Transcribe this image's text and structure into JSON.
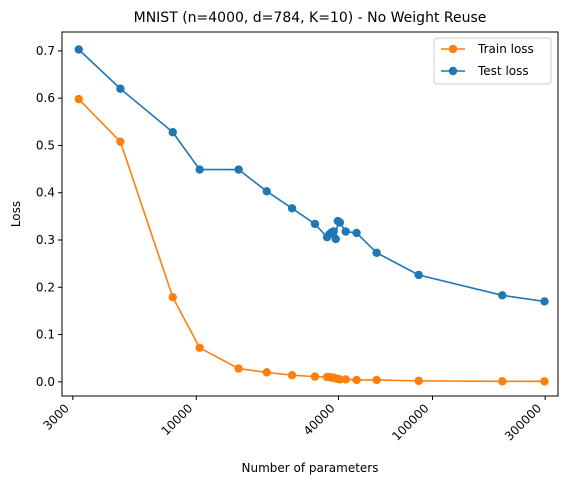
{
  "chart_data": {
    "type": "line",
    "title": "MNIST (n=4000, d=784, K=10) - No Weight Reuse",
    "xlabel": "Number of parameters",
    "ylabel": "Loss",
    "x_scale": "log",
    "xlim": [
      2700,
      340000
    ],
    "ylim": [
      -0.03,
      0.74
    ],
    "x_ticks": [
      {
        "value": 3000,
        "label": "3000"
      },
      {
        "value": 10000,
        "label": "10000"
      },
      {
        "value": 40000,
        "label": "40000"
      },
      {
        "value": 100000,
        "label": "100000"
      },
      {
        "value": 300000,
        "label": "300000"
      }
    ],
    "y_ticks": [
      {
        "value": 0.0,
        "label": "0.0"
      },
      {
        "value": 0.1,
        "label": "0.1"
      },
      {
        "value": 0.2,
        "label": "0.2"
      },
      {
        "value": 0.3,
        "label": "0.3"
      },
      {
        "value": 0.4,
        "label": "0.4"
      },
      {
        "value": 0.5,
        "label": "0.5"
      },
      {
        "value": 0.6,
        "label": "0.6"
      },
      {
        "value": 0.7,
        "label": "0.7"
      }
    ],
    "grid": false,
    "legend_position": "top-right",
    "series": [
      {
        "name": "Train loss",
        "color": "#ff7f0e",
        "x": [
          3178,
          4770,
          7950,
          10335,
          15105,
          19875,
          25440,
          31800,
          35775,
          36570,
          37365,
          38160,
          38955,
          39750,
          40545,
          42930,
          47700,
          58035,
          87450,
          197565,
          298110
        ],
        "y": [
          0.598,
          0.508,
          0.179,
          0.072,
          0.028,
          0.02,
          0.014,
          0.011,
          0.01,
          0.01,
          0.009,
          0.009,
          0.007,
          0.006,
          0.005,
          0.005,
          0.004,
          0.004,
          0.002,
          0.001,
          0.001
        ]
      },
      {
        "name": "Test loss",
        "color": "#1f77b4",
        "x": [
          3178,
          4770,
          7950,
          10335,
          15105,
          19875,
          25440,
          31800,
          35775,
          36570,
          37365,
          38160,
          38955,
          39750,
          40545,
          42930,
          47700,
          58035,
          87450,
          197565,
          298110
        ],
        "y": [
          0.703,
          0.62,
          0.528,
          0.449,
          0.449,
          0.403,
          0.367,
          0.334,
          0.306,
          0.312,
          0.316,
          0.318,
          0.302,
          0.34,
          0.337,
          0.318,
          0.315,
          0.273,
          0.226,
          0.183,
          0.17
        ]
      }
    ]
  }
}
